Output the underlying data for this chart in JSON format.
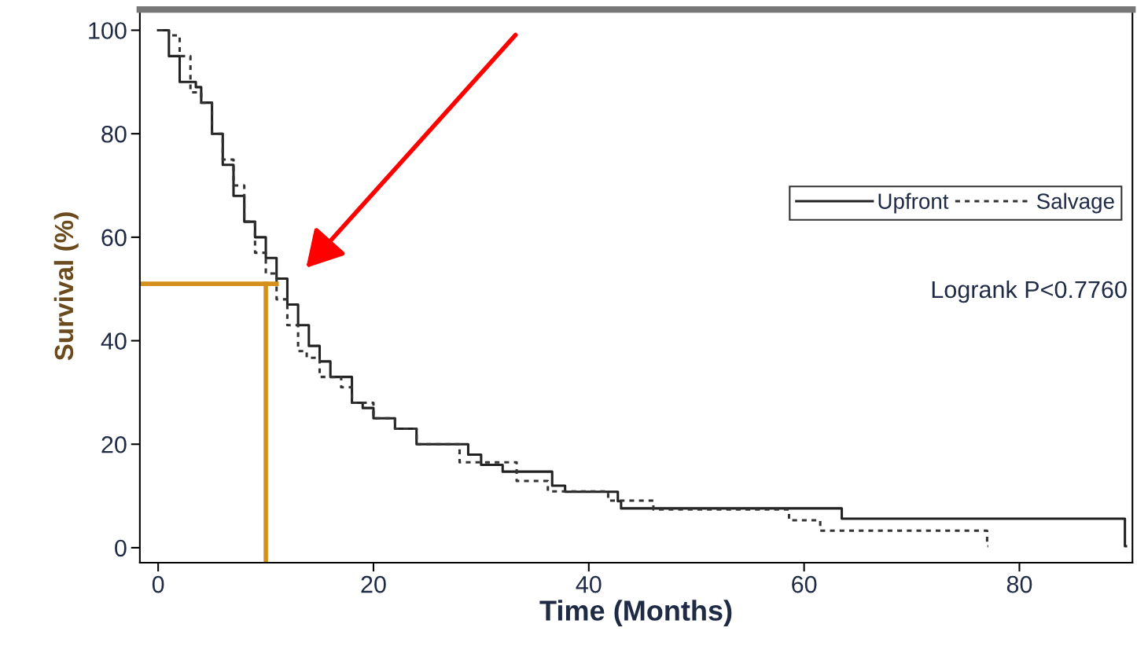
{
  "chart_data": {
    "type": "step",
    "xlabel": "Time (Months)",
    "ylabel": "Survival (%)",
    "xlim": [
      -1.7,
      90.5
    ],
    "ylim": [
      -2.9,
      104
    ],
    "xticks": [
      0,
      20,
      40,
      60,
      80
    ],
    "yticks": [
      0,
      20,
      40,
      60,
      80,
      100
    ],
    "grid": false,
    "legend": "right",
    "marker": "none",
    "series": [
      {
        "name": "Upfront",
        "color": "#222222",
        "line_style": "solid",
        "x": [
          0,
          1,
          2,
          3.5,
          4,
          5,
          6,
          7,
          8,
          9,
          10,
          11,
          12,
          13,
          14,
          15,
          16,
          18,
          19,
          20,
          22,
          24,
          28.8,
          30,
          32,
          36.6,
          37.8,
          42.7,
          43,
          46,
          63.5,
          89.8,
          89.9
        ],
        "values": [
          100,
          95,
          90,
          89,
          86,
          80,
          74,
          68,
          63,
          60,
          56,
          52,
          47,
          43,
          39,
          36,
          33,
          28,
          27,
          25,
          23,
          20,
          18,
          16,
          14.7,
          12,
          10.8,
          9,
          7.6,
          7.6,
          5.6,
          0.3,
          0.3
        ]
      },
      {
        "name": "Salvage",
        "color": "#333333",
        "line_style": "dotted",
        "x": [
          0,
          1,
          2,
          3,
          4,
          5,
          6,
          7,
          8,
          9,
          10,
          11,
          12,
          13,
          13.8,
          15,
          17,
          18,
          20,
          22,
          24,
          28,
          33.3,
          36.2,
          41.8,
          46,
          58.6,
          61.5,
          77,
          77.1
        ],
        "values": [
          100,
          99,
          95,
          88,
          86,
          80,
          75,
          70,
          63,
          57,
          53,
          48,
          43,
          38,
          36.7,
          33,
          31,
          28,
          25,
          23,
          20,
          16.5,
          12.9,
          10.9,
          9.1,
          7.4,
          5.3,
          3.3,
          0.3,
          0.3
        ]
      }
    ],
    "ref_lines": [
      {
        "axis": "y",
        "value": 51,
        "color": "#d4901a"
      },
      {
        "axis": "x",
        "value": 10,
        "color": "#d4901a"
      }
    ],
    "annotations": [
      "Logrank P<0.7760"
    ]
  }
}
